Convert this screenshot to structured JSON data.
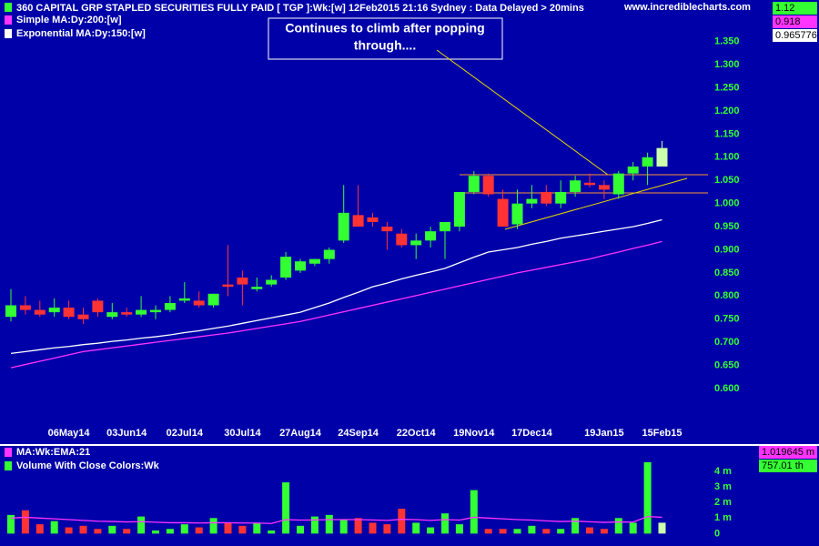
{
  "header": "360 CAPITAL GRP STAPLED SECURITIES FULLY PAID [ TGP ]:Wk:[w]  12Feb2015 21:16 Sydney : Data Delayed > 20mins",
  "site": "www.incrediblecharts.com",
  "chart_data": [
    {
      "type": "candlestick",
      "annotation": [
        "Continues to climb after popping",
        "through...."
      ],
      "categories": [
        null,
        null,
        null,
        null,
        "06May14",
        null,
        null,
        null,
        "03Jun14",
        null,
        null,
        null,
        "02Jul14",
        null,
        null,
        null,
        "30Jul14",
        null,
        null,
        null,
        "27Aug14",
        null,
        null,
        null,
        "24Sep14",
        null,
        null,
        null,
        "22Oct14",
        null,
        null,
        null,
        "19Nov14",
        null,
        null,
        null,
        "17Dec14",
        null,
        null,
        null,
        null,
        "19Jan15",
        null,
        null,
        null,
        "15Feb15"
      ],
      "open": [
        0.755,
        0.78,
        0.77,
        0.765,
        0.775,
        0.76,
        0.79,
        0.755,
        0.765,
        0.76,
        0.765,
        0.77,
        0.79,
        0.79,
        0.78,
        0.825,
        0.84,
        0.815,
        0.825,
        0.84,
        0.855,
        0.87,
        0.88,
        0.92,
        0.975,
        0.97,
        0.95,
        0.935,
        0.91,
        0.92,
        0.94,
        0.95,
        1.025,
        1.06,
        1.01,
        0.955,
        1.0,
        1.025,
        1.0,
        1.025,
        1.045,
        1.04,
        1.02,
        1.065,
        1.08,
        1.08
      ],
      "high": [
        0.815,
        0.8,
        0.79,
        0.795,
        0.79,
        0.775,
        0.795,
        0.785,
        0.775,
        0.8,
        0.78,
        0.8,
        0.83,
        0.81,
        0.805,
        0.91,
        0.855,
        0.84,
        0.845,
        0.895,
        0.88,
        0.88,
        0.905,
        1.04,
        1.04,
        0.98,
        0.96,
        0.945,
        0.935,
        0.95,
        0.96,
        1.025,
        1.07,
        1.065,
        1.03,
        1.03,
        1.04,
        1.04,
        1.05,
        1.06,
        1.065,
        1.05,
        1.07,
        1.09,
        1.11,
        1.135
      ],
      "low": [
        0.745,
        0.76,
        0.755,
        0.755,
        0.75,
        0.74,
        0.755,
        0.75,
        0.755,
        0.755,
        0.75,
        0.765,
        0.785,
        0.775,
        0.775,
        0.8,
        0.78,
        0.81,
        0.82,
        0.835,
        0.85,
        0.865,
        0.87,
        0.915,
        0.955,
        0.95,
        0.9,
        0.905,
        0.88,
        0.905,
        0.88,
        0.94,
        1.02,
        1.015,
        0.95,
        0.945,
        0.99,
        0.995,
        0.99,
        1.015,
        1.035,
        1.01,
        1.01,
        1.05,
        1.04,
        1.08
      ],
      "close": [
        0.78,
        0.77,
        0.76,
        0.775,
        0.755,
        0.75,
        0.765,
        0.765,
        0.76,
        0.77,
        0.77,
        0.785,
        0.795,
        0.78,
        0.805,
        0.82,
        0.825,
        0.82,
        0.835,
        0.885,
        0.875,
        0.88,
        0.9,
        0.98,
        0.95,
        0.96,
        0.94,
        0.91,
        0.92,
        0.94,
        0.96,
        1.025,
        1.06,
        1.02,
        0.95,
        1.0,
        1.01,
        1.0,
        1.025,
        1.05,
        1.04,
        1.03,
        1.065,
        1.08,
        1.1,
        1.12
      ],
      "colors": {
        "up": "#33ff33",
        "down": "#ff3333",
        "last": "#ccffaa"
      },
      "series": [
        {
          "name": "Simple MA:Dy:200:[w]",
          "color": "#ff33ff",
          "values": [
            0.645,
            0.652,
            0.659,
            0.666,
            0.673,
            0.68,
            0.684,
            0.688,
            0.692,
            0.696,
            0.7,
            0.704,
            0.708,
            0.712,
            0.716,
            0.72,
            0.725,
            0.73,
            0.735,
            0.74,
            0.745,
            0.752,
            0.759,
            0.766,
            0.773,
            0.78,
            0.787,
            0.794,
            0.801,
            0.808,
            0.815,
            0.822,
            0.829,
            0.836,
            0.843,
            0.85,
            0.856,
            0.862,
            0.868,
            0.874,
            0.88,
            0.888,
            0.895,
            0.903,
            0.91,
            0.918
          ]
        },
        {
          "name": "Exponential MA:Dy:150:[w]",
          "color": "#ffffff",
          "values": [
            0.676,
            0.68,
            0.684,
            0.688,
            0.691,
            0.695,
            0.698,
            0.702,
            0.705,
            0.709,
            0.712,
            0.716,
            0.721,
            0.725,
            0.73,
            0.735,
            0.741,
            0.747,
            0.753,
            0.759,
            0.765,
            0.775,
            0.785,
            0.797,
            0.808,
            0.82,
            0.828,
            0.837,
            0.845,
            0.852,
            0.86,
            0.872,
            0.884,
            0.895,
            0.9,
            0.905,
            0.912,
            0.918,
            0.925,
            0.93,
            0.935,
            0.94,
            0.945,
            0.95,
            0.957,
            0.965
          ]
        }
      ],
      "value_boxes": [
        {
          "label": "1.12",
          "color": "#33ff33"
        },
        {
          "label": "0.918",
          "color": "#ff33ff"
        },
        {
          "label": "0.965776",
          "color": "#ffffff"
        }
      ],
      "ylim": [
        0.48,
        1.44
      ],
      "yticks": [
        {
          "value": 0.6,
          "label": "0.600"
        },
        {
          "value": 0.65,
          "label": "0.650"
        },
        {
          "value": 0.7,
          "label": "0.700"
        },
        {
          "value": 0.75,
          "label": "0.750"
        },
        {
          "value": 0.8,
          "label": "0.800"
        },
        {
          "value": 0.85,
          "label": "0.850"
        },
        {
          "value": 0.9,
          "label": "0.900"
        },
        {
          "value": 0.95,
          "label": "0.950"
        },
        {
          "value": 1.0,
          "label": "1.000"
        },
        {
          "value": 1.05,
          "label": "1.050"
        },
        {
          "value": 1.1,
          "label": "1.100"
        },
        {
          "value": 1.15,
          "label": "1.150"
        },
        {
          "value": 1.2,
          "label": "1.200"
        },
        {
          "value": 1.25,
          "label": "1.250"
        },
        {
          "value": 1.3,
          "label": "1.300"
        },
        {
          "value": 1.35,
          "label": "1.350"
        }
      ]
    },
    {
      "type": "volume",
      "values": [
        1.2,
        1.5,
        0.6,
        0.8,
        0.4,
        0.5,
        0.3,
        0.5,
        0.3,
        1.1,
        0.2,
        0.3,
        0.6,
        0.4,
        1.0,
        0.7,
        0.5,
        0.7,
        0.2,
        3.3,
        0.5,
        1.1,
        1.2,
        0.9,
        1.0,
        0.7,
        0.6,
        1.6,
        0.7,
        0.4,
        1.3,
        0.6,
        2.8,
        0.3,
        0.3,
        0.3,
        0.5,
        0.3,
        0.3,
        1.0,
        0.4,
        0.3,
        1.0,
        0.7,
        4.6,
        0.7
      ],
      "series": [
        {
          "name": "MA:Wk:EMA:21",
          "color": "#ff33ff",
          "values": [
            1.0,
            1.05,
            1.0,
            0.95,
            0.9,
            0.85,
            0.8,
            0.78,
            0.75,
            0.77,
            0.73,
            0.7,
            0.7,
            0.68,
            0.7,
            0.7,
            0.68,
            0.68,
            0.65,
            0.9,
            0.87,
            0.88,
            0.9,
            0.9,
            0.9,
            0.88,
            0.85,
            0.92,
            0.9,
            0.85,
            0.9,
            0.87,
            1.05,
            1.0,
            0.95,
            0.9,
            0.87,
            0.82,
            0.78,
            0.8,
            0.76,
            0.72,
            0.75,
            0.74,
            1.1,
            1.05
          ]
        },
        {
          "name": "Volume With Close Colors:Wk",
          "color": "#33ff33"
        }
      ],
      "value_boxes": [
        {
          "label": "1.019645 m",
          "color": "#ff33ff"
        },
        {
          "label": "757.01 th",
          "color": "#33ff33"
        }
      ],
      "ylim": [
        -0.8,
        5.65
      ],
      "yticks": [
        0,
        {
          "value": 1,
          "label": "1 m"
        },
        {
          "value": 2,
          "label": "2 m"
        },
        {
          "value": 3,
          "label": "3 m"
        },
        {
          "value": 4,
          "label": "4 m"
        }
      ]
    }
  ]
}
